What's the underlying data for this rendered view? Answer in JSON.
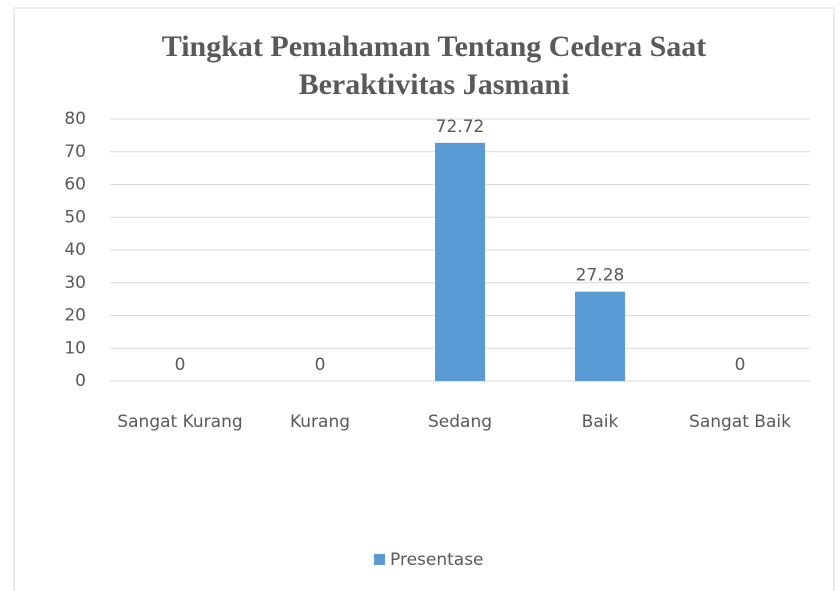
{
  "chart_data": {
    "type": "bar",
    "title": "Tingkat Pemahaman Tentang Cedera Saat Beraktivitas Jasmani",
    "categories": [
      "Sangat Kurang",
      "Kurang",
      "Sedang",
      "Baik",
      "Sangat Baik"
    ],
    "series": [
      {
        "name": "Presentase",
        "color": "#5b9bd5",
        "values": [
          0,
          0,
          72.72,
          27.28,
          0
        ]
      }
    ],
    "ylim": [
      0,
      80
    ],
    "yticks": [
      0,
      10,
      20,
      30,
      40,
      50,
      60,
      70,
      80
    ],
    "grid": true,
    "legend": "bottom"
  }
}
